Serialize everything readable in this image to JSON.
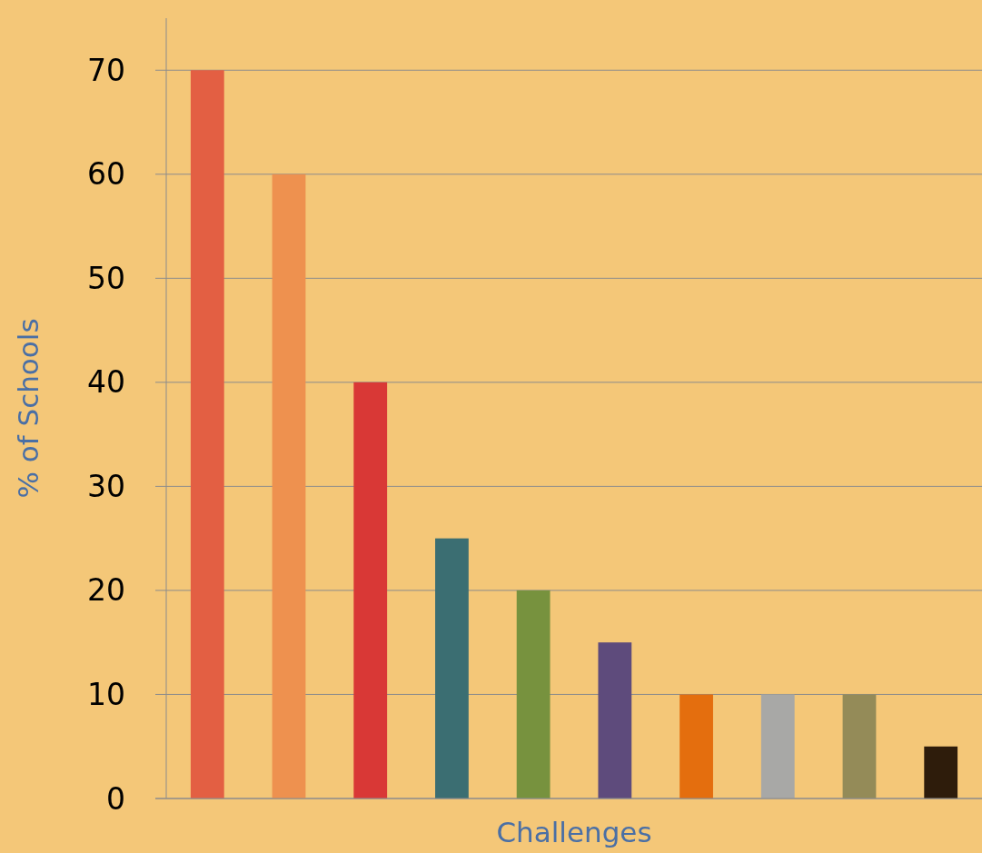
{
  "chart_data": {
    "type": "bar",
    "xlabel": "Challenges",
    "ylabel": "% of Schools",
    "categories": [
      null,
      null,
      null,
      null,
      null,
      null,
      null,
      null,
      null,
      null
    ],
    "values": [
      70,
      60,
      40,
      25,
      20,
      15,
      10,
      10,
      10,
      5
    ],
    "colors": [
      "#e35f43",
      "#ee914f",
      "#d93836",
      "#3b6e72",
      "#77923e",
      "#5e4b7c",
      "#e46e0e",
      "#a8a8a6",
      "#948b58",
      "#2e1c0b"
    ],
    "ylim": [
      0,
      75
    ],
    "yticks": [
      0,
      10,
      20,
      30,
      40,
      50,
      60,
      70
    ],
    "grid": "y"
  }
}
